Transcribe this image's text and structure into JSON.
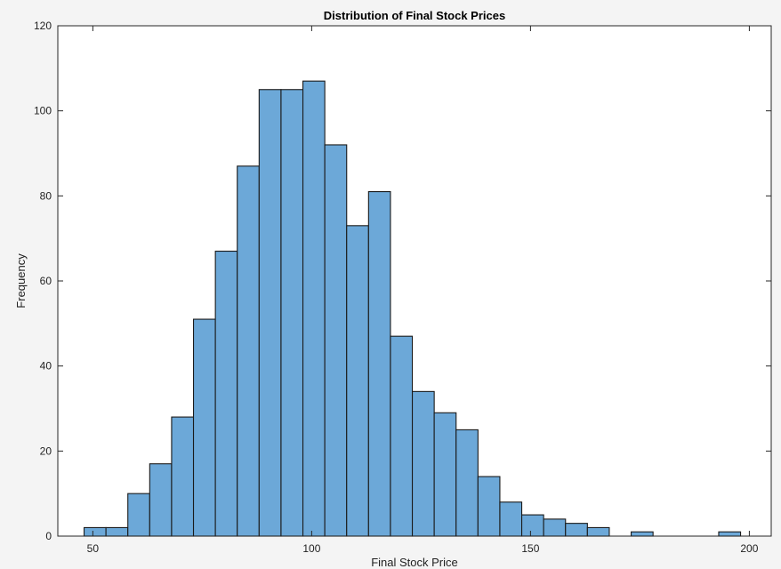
{
  "chart_data": {
    "type": "bar",
    "title": "Distribution of Final Stock Prices",
    "xlabel": "Final Stock Price",
    "ylabel": "Frequency",
    "xlim": [
      42,
      205
    ],
    "ylim": [
      0,
      120
    ],
    "xticks": [
      50,
      100,
      150,
      200
    ],
    "yticks": [
      0,
      20,
      40,
      60,
      80,
      100,
      120
    ],
    "grid": false,
    "bar_color": "#6ca8d8",
    "edge_color": "#1a1a1a",
    "bins": [
      {
        "x0": 48,
        "x1": 53,
        "count": 2
      },
      {
        "x0": 53,
        "x1": 58,
        "count": 2
      },
      {
        "x0": 58,
        "x1": 63,
        "count": 10
      },
      {
        "x0": 63,
        "x1": 68,
        "count": 17
      },
      {
        "x0": 68,
        "x1": 73,
        "count": 28
      },
      {
        "x0": 73,
        "x1": 78,
        "count": 51
      },
      {
        "x0": 78,
        "x1": 83,
        "count": 67
      },
      {
        "x0": 83,
        "x1": 88,
        "count": 87
      },
      {
        "x0": 88,
        "x1": 93,
        "count": 105
      },
      {
        "x0": 93,
        "x1": 98,
        "count": 105
      },
      {
        "x0": 98,
        "x1": 103,
        "count": 107
      },
      {
        "x0": 103,
        "x1": 108,
        "count": 92
      },
      {
        "x0": 108,
        "x1": 113,
        "count": 73
      },
      {
        "x0": 113,
        "x1": 118,
        "count": 81
      },
      {
        "x0": 118,
        "x1": 123,
        "count": 47
      },
      {
        "x0": 123,
        "x1": 128,
        "count": 34
      },
      {
        "x0": 128,
        "x1": 133,
        "count": 29
      },
      {
        "x0": 133,
        "x1": 138,
        "count": 25
      },
      {
        "x0": 138,
        "x1": 143,
        "count": 14
      },
      {
        "x0": 143,
        "x1": 148,
        "count": 8
      },
      {
        "x0": 148,
        "x1": 153,
        "count": 5
      },
      {
        "x0": 153,
        "x1": 158,
        "count": 4
      },
      {
        "x0": 158,
        "x1": 163,
        "count": 3
      },
      {
        "x0": 163,
        "x1": 168,
        "count": 2
      },
      {
        "x0": 168,
        "x1": 173,
        "count": 0
      },
      {
        "x0": 173,
        "x1": 178,
        "count": 1
      },
      {
        "x0": 178,
        "x1": 183,
        "count": 0
      },
      {
        "x0": 183,
        "x1": 188,
        "count": 0
      },
      {
        "x0": 188,
        "x1": 193,
        "count": 0
      },
      {
        "x0": 193,
        "x1": 198,
        "count": 1
      }
    ]
  }
}
